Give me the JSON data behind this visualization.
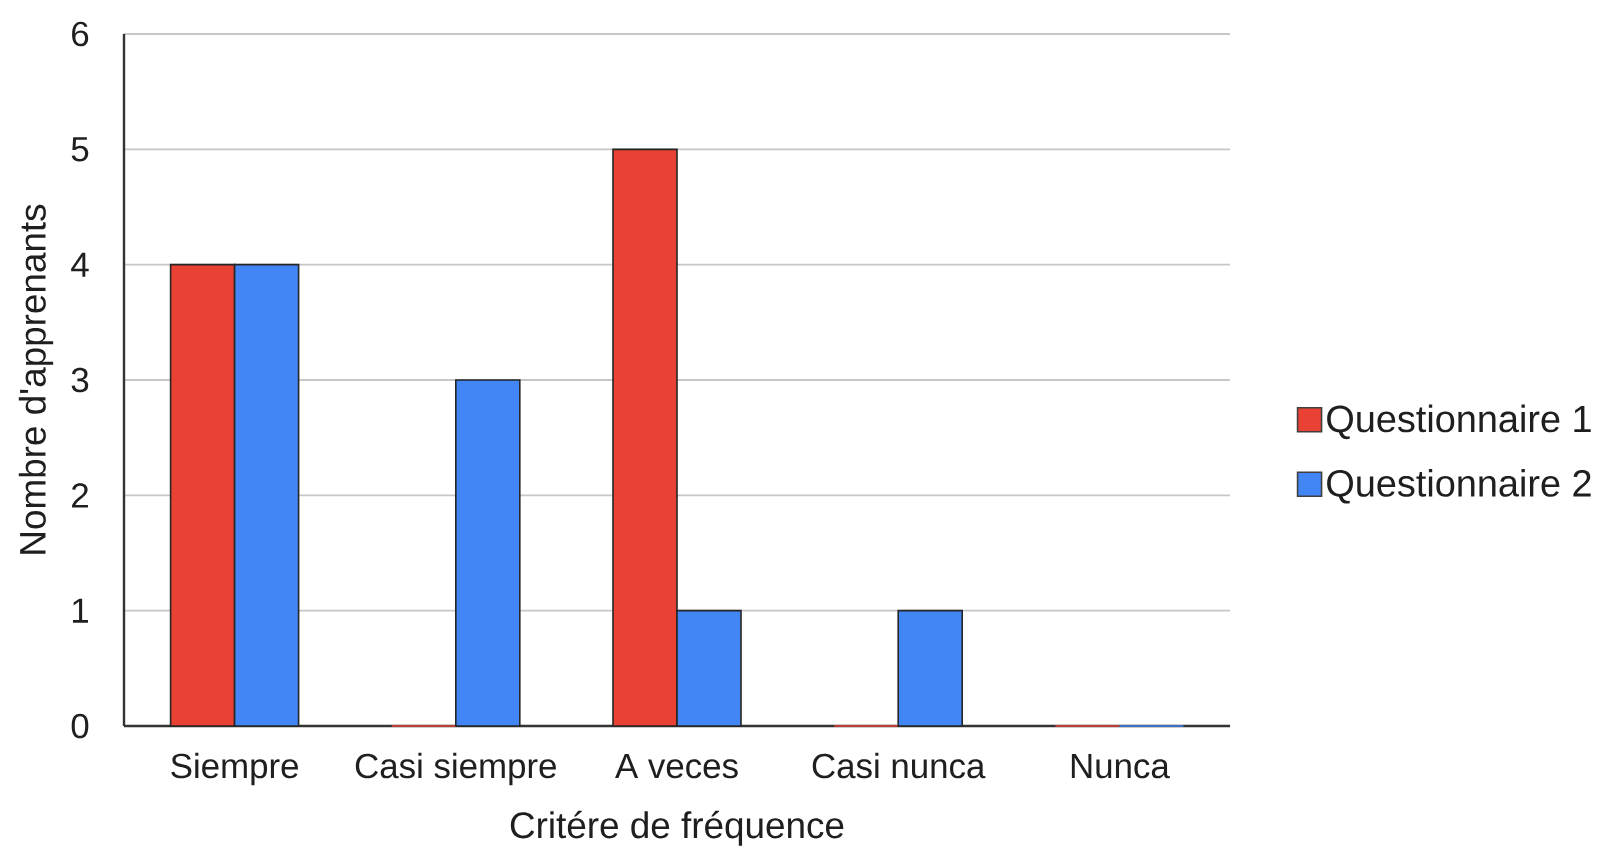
{
  "chart_data": {
    "type": "bar",
    "xlabel": "Critére de fréquence",
    "ylabel": "Nombre d'apprenants",
    "categories": [
      "Siempre",
      "Casi siempre",
      "A veces",
      "Casi nunca",
      "Nunca"
    ],
    "series": [
      {
        "name": "Questionnaire 1",
        "color": "#e94235",
        "values": [
          4,
          0,
          5,
          0,
          0
        ]
      },
      {
        "name": "Questionnaire 2",
        "color": "#4285f4",
        "values": [
          4,
          3,
          1,
          1,
          0
        ]
      }
    ],
    "ylim": [
      0,
      6
    ],
    "yticks": [
      0,
      1,
      2,
      3,
      4,
      5,
      6
    ],
    "grid": "y",
    "legend": "right"
  }
}
